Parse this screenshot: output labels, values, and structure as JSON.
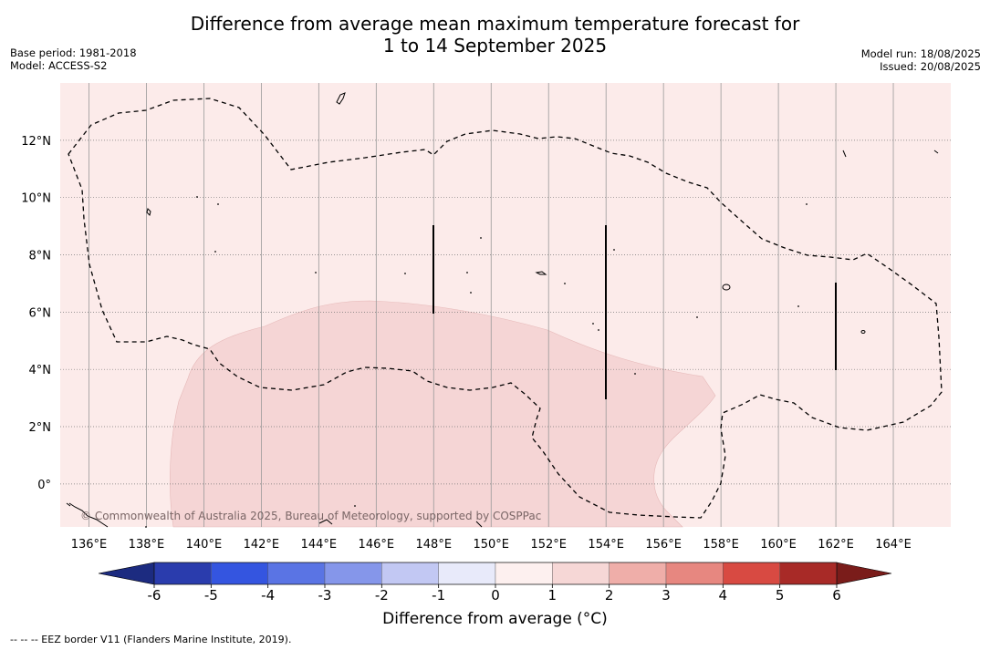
{
  "header": {
    "title_line1": "Difference from average mean maximum temperature forecast for",
    "title_line2": "1 to 14 September 2025",
    "base_period": "Base period: 1981-2018",
    "model": "Model: ACCESS-S2",
    "model_run": "Model run: 18/08/2025",
    "issued": "Issued: 20/08/2025"
  },
  "map": {
    "lon_range": [
      135,
      166
    ],
    "lat_range": [
      -1.5,
      14
    ],
    "lon_ticks": [
      "136°E",
      "138°E",
      "140°E",
      "142°E",
      "144°E",
      "146°E",
      "148°E",
      "150°E",
      "152°E",
      "154°E",
      "156°E",
      "158°E",
      "160°E",
      "162°E",
      "164°E"
    ],
    "lat_ticks": [
      "0°",
      "2°N",
      "4°N",
      "6°N",
      "8°N",
      "10°N",
      "12°N"
    ],
    "background_anomaly_color": "#fcebea",
    "warm_region_color": "#f5d5d5",
    "copyright": "© Commonwealth of Australia 2025, Bureau of Meteorology, supported by COSPPac"
  },
  "colorbar": {
    "ticks": [
      "-6",
      "-5",
      "-4",
      "-3",
      "-2",
      "-1",
      "0",
      "1",
      "2",
      "3",
      "4",
      "5",
      "6"
    ],
    "colors": [
      "#2a3cad",
      "#3455e0",
      "#5a74e4",
      "#8596ea",
      "#c2c8f3",
      "#e8eafa",
      "#fdf0ef",
      "#f6d7d6",
      "#efaea9",
      "#e78780",
      "#d84a42",
      "#a82a27"
    ],
    "low_extend_color": "#1c2b80",
    "high_extend_color": "#7a1c1a",
    "label": "Difference from average (°C)"
  },
  "footnote": "--  --  -- EEZ border V11 (Flanders Marine Institute, 2019)."
}
